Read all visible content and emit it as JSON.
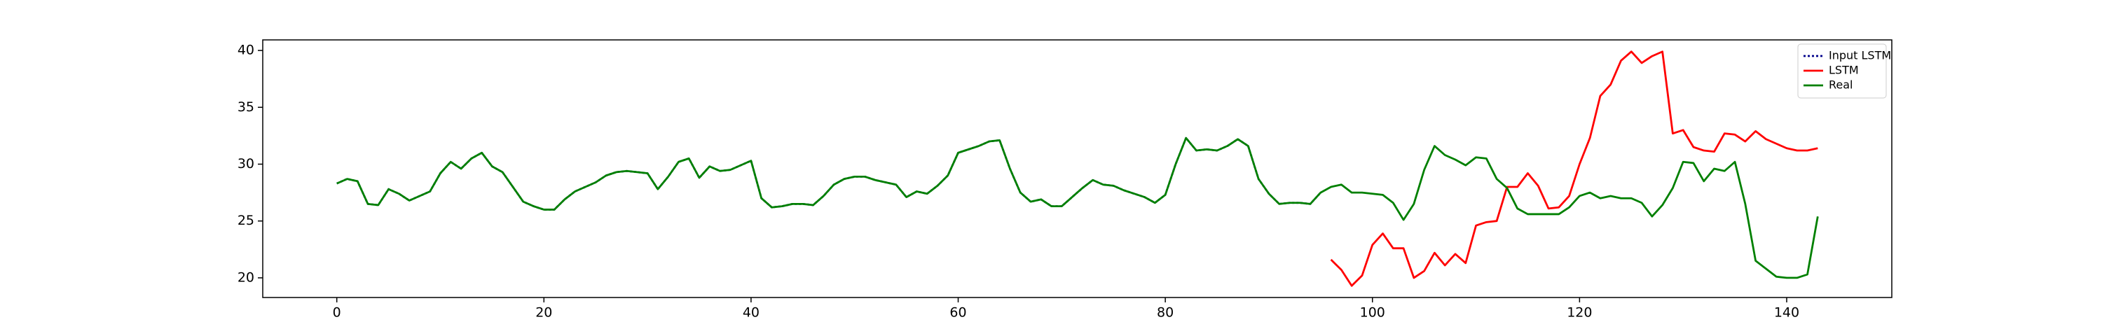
{
  "chart_data": {
    "type": "line",
    "x": [
      0,
      1,
      2,
      3,
      4,
      5,
      6,
      7,
      8,
      9,
      10,
      11,
      12,
      13,
      14,
      15,
      16,
      17,
      18,
      19,
      20,
      21,
      22,
      23,
      24,
      25,
      26,
      27,
      28,
      29,
      30,
      31,
      32,
      33,
      34,
      35,
      36,
      37,
      38,
      39,
      40,
      41,
      42,
      43,
      44,
      45,
      46,
      47,
      48,
      49,
      50,
      51,
      52,
      53,
      54,
      55,
      56,
      57,
      58,
      59,
      60,
      61,
      62,
      63,
      64,
      65,
      66,
      67,
      68,
      69,
      70,
      71,
      72,
      73,
      74,
      75,
      76,
      77,
      78,
      79,
      80,
      81,
      82,
      83,
      84,
      85,
      86,
      87,
      88,
      89,
      90,
      91,
      92,
      93,
      94,
      95,
      96,
      97,
      98,
      99,
      100,
      101,
      102,
      103,
      104,
      105,
      106,
      107,
      108,
      109,
      110,
      111,
      112,
      113,
      114,
      115,
      116,
      117,
      118,
      119,
      120,
      121,
      122,
      123,
      124,
      125,
      126,
      127,
      128,
      129,
      130,
      131,
      132,
      133,
      134,
      135,
      136,
      137,
      138,
      139,
      140,
      141,
      142,
      143
    ],
    "series": [
      {
        "name": "Input LSTM",
        "color": "#00008b",
        "linestyle": "dotted",
        "values": [
          28.3,
          28.7,
          28.5,
          26.5,
          26.4,
          27.8,
          27.4,
          26.8,
          27.2,
          27.6,
          29.2,
          30.2,
          29.6,
          30.5,
          31.0,
          29.8,
          29.3,
          28.0,
          26.7,
          26.3,
          26.0,
          26.0,
          26.9,
          27.6,
          28.0,
          28.4,
          29.0,
          29.3,
          29.4,
          29.3,
          29.2,
          27.8,
          28.9,
          30.2,
          30.5,
          28.8,
          29.8,
          29.4,
          29.5,
          29.9,
          30.3,
          27.0,
          26.2,
          26.3,
          26.5,
          26.5,
          26.4,
          27.2,
          28.2,
          28.7,
          28.9,
          28.9,
          28.6,
          28.4,
          28.2,
          27.1,
          27.6,
          27.4,
          28.1,
          29.0,
          31.0,
          31.3,
          31.6,
          32.0,
          32.1,
          29.6,
          27.5,
          26.7,
          26.9,
          26.3,
          26.3,
          27.1,
          27.9,
          28.6,
          28.2,
          28.1,
          27.7,
          27.4,
          27.1,
          26.6,
          27.3,
          30.0,
          32.3,
          31.2,
          31.3,
          31.2,
          31.6,
          32.2,
          31.6,
          28.7,
          27.4,
          26.5,
          26.6,
          26.6,
          26.5,
          27.5,
          null,
          null,
          null,
          null,
          null,
          null,
          null,
          null,
          null,
          null,
          null,
          null,
          null,
          null,
          null,
          null,
          null,
          null,
          null,
          null,
          null,
          null,
          null,
          null,
          null,
          null,
          null,
          null,
          null,
          null,
          null,
          null,
          null,
          null,
          null,
          null,
          null,
          null,
          null,
          null,
          null,
          null,
          null,
          null,
          null,
          null,
          null,
          null
        ]
      },
      {
        "name": "LSTM",
        "color": "#ff0000",
        "linestyle": "solid",
        "values": [
          null,
          null,
          null,
          null,
          null,
          null,
          null,
          null,
          null,
          null,
          null,
          null,
          null,
          null,
          null,
          null,
          null,
          null,
          null,
          null,
          null,
          null,
          null,
          null,
          null,
          null,
          null,
          null,
          null,
          null,
          null,
          null,
          null,
          null,
          null,
          null,
          null,
          null,
          null,
          null,
          null,
          null,
          null,
          null,
          null,
          null,
          null,
          null,
          null,
          null,
          null,
          null,
          null,
          null,
          null,
          null,
          null,
          null,
          null,
          null,
          null,
          null,
          null,
          null,
          null,
          null,
          null,
          null,
          null,
          null,
          null,
          null,
          null,
          null,
          null,
          null,
          null,
          null,
          null,
          null,
          null,
          null,
          null,
          null,
          null,
          null,
          null,
          null,
          null,
          null,
          null,
          null,
          null,
          null,
          null,
          null,
          21.6,
          20.7,
          19.3,
          20.2,
          22.9,
          23.9,
          22.6,
          22.6,
          20.0,
          20.6,
          22.2,
          21.1,
          22.1,
          21.3,
          24.6,
          24.9,
          25.0,
          28.0,
          28.0,
          29.2,
          28.1,
          26.1,
          26.2,
          27.2,
          30.0,
          32.3,
          36.0,
          37.0,
          39.1,
          39.9,
          38.9,
          39.5,
          39.9,
          32.7,
          33.0,
          31.5,
          31.2,
          31.1,
          32.7,
          32.6,
          32.0,
          32.9,
          32.2,
          31.8,
          31.4,
          31.2,
          31.2,
          31.4
        ]
      },
      {
        "name": "Real",
        "color": "#008000",
        "linestyle": "solid",
        "values": [
          28.3,
          28.7,
          28.5,
          26.5,
          26.4,
          27.8,
          27.4,
          26.8,
          27.2,
          27.6,
          29.2,
          30.2,
          29.6,
          30.5,
          31.0,
          29.8,
          29.3,
          28.0,
          26.7,
          26.3,
          26.0,
          26.0,
          26.9,
          27.6,
          28.0,
          28.4,
          29.0,
          29.3,
          29.4,
          29.3,
          29.2,
          27.8,
          28.9,
          30.2,
          30.5,
          28.8,
          29.8,
          29.4,
          29.5,
          29.9,
          30.3,
          27.0,
          26.2,
          26.3,
          26.5,
          26.5,
          26.4,
          27.2,
          28.2,
          28.7,
          28.9,
          28.9,
          28.6,
          28.4,
          28.2,
          27.1,
          27.6,
          27.4,
          28.1,
          29.0,
          31.0,
          31.3,
          31.6,
          32.0,
          32.1,
          29.6,
          27.5,
          26.7,
          26.9,
          26.3,
          26.3,
          27.1,
          27.9,
          28.6,
          28.2,
          28.1,
          27.7,
          27.4,
          27.1,
          26.6,
          27.3,
          30.0,
          32.3,
          31.2,
          31.3,
          31.2,
          31.6,
          32.2,
          31.6,
          28.7,
          27.4,
          26.5,
          26.6,
          26.6,
          26.5,
          27.5,
          28.0,
          28.2,
          27.5,
          27.5,
          27.4,
          27.3,
          26.6,
          25.1,
          26.5,
          29.5,
          31.6,
          30.8,
          30.4,
          29.9,
          30.6,
          30.5,
          28.7,
          27.9,
          26.1,
          25.6,
          25.6,
          25.6,
          25.6,
          26.2,
          27.2,
          27.5,
          27.0,
          27.2,
          27.0,
          27.0,
          26.6,
          25.4,
          26.4,
          27.9,
          30.2,
          30.1,
          28.5,
          29.6,
          29.4,
          30.2,
          26.5,
          21.5,
          20.8,
          20.1,
          20.0,
          20.0,
          20.3,
          25.4
        ]
      }
    ],
    "xlim": [
      -7.15,
      150.15
    ],
    "xticks": [
      0,
      20,
      40,
      60,
      80,
      100,
      120,
      140
    ],
    "ylim": [
      18.27,
      40.93
    ],
    "yticks": [
      20,
      25,
      30,
      35,
      40
    ],
    "grid": false,
    "legend": "upper-right"
  }
}
